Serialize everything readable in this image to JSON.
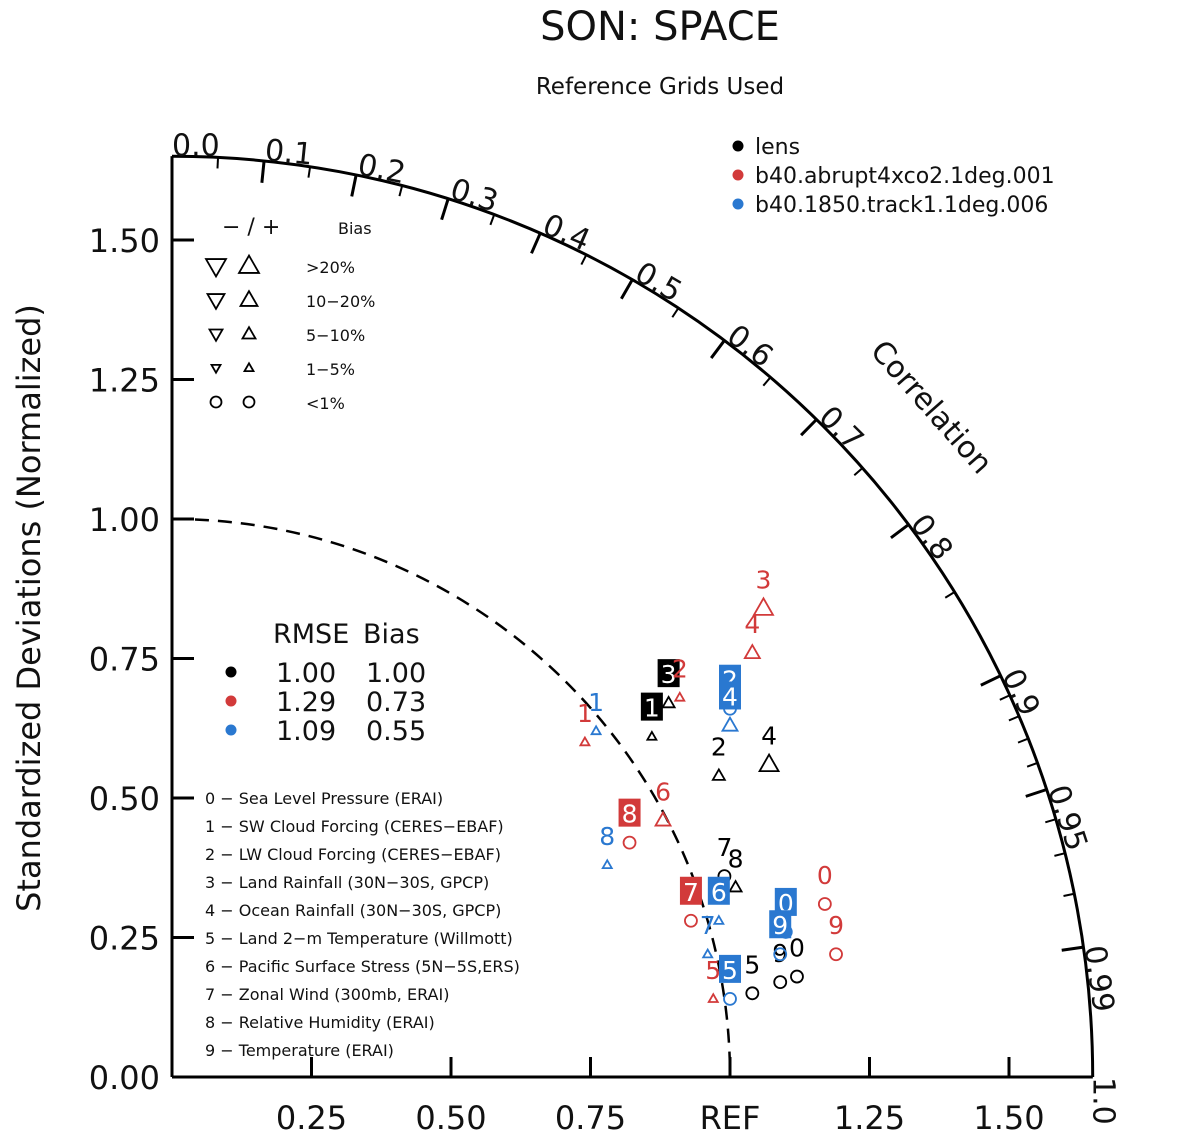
{
  "chart_data": {
    "type": "scatter",
    "subtype": "taylor-diagram",
    "title": "SON: SPACE",
    "subtitle": "Reference Grids Used",
    "ylabel": "Standardized Deviations (Normalized)",
    "correlation_label": "Correlation",
    "ref_label": "REF",
    "ylim": [
      0,
      1.65
    ],
    "xlim": [
      0,
      1.65
    ],
    "y_ticks": [
      "0.00",
      "0.25",
      "0.50",
      "0.75",
      "1.00",
      "1.25",
      "1.50"
    ],
    "x_ticks": [
      "0.25",
      "0.50",
      "0.75",
      "1.25",
      "1.50"
    ],
    "corr_ticks": [
      "0.0",
      "0.1",
      "0.2",
      "0.3",
      "0.4",
      "0.5",
      "0.6",
      "0.7",
      "0.8",
      "0.9",
      "0.95",
      "0.99",
      "1.0"
    ],
    "ref_circle_std": 1.0,
    "series": [
      {
        "name": "lens",
        "color": "#000000",
        "rmse": "1.00",
        "bias": "1.00"
      },
      {
        "name": "b40.abrupt4xco2.1deg.001",
        "color": "#d23a3a",
        "rmse": "1.29",
        "bias": "0.73"
      },
      {
        "name": "b40.1850.track1.1deg.006",
        "color": "#2a78d0",
        "rmse": "1.09",
        "bias": "0.55"
      }
    ],
    "bias_key": {
      "header": "− / +",
      "header_bias": "Bias",
      "rows": [
        {
          "label": ">20%",
          "size": "large"
        },
        {
          "label": "10−20%",
          "size": "medium"
        },
        {
          "label": "5−10%",
          "size": "small"
        },
        {
          "label": "1−5%",
          "size": "tiny"
        },
        {
          "label": "<1%",
          "size": "circle"
        }
      ]
    },
    "stats_header": {
      "rmse": "RMSE",
      "bias": "Bias"
    },
    "variables": [
      "0 − Sea Level Pressure (ERAI)",
      "1 − SW Cloud Forcing (CERES−EBAF)",
      "2 − LW Cloud Forcing (CERES−EBAF)",
      "3 − Land Rainfall (30N−30S, GPCP)",
      "4 − Ocean Rainfall (30N−30S, GPCP)",
      "5 − Land 2−m Temperature (Willmott)",
      "6 − Pacific Surface Stress (5N−5S,ERS)",
      "7 − Zonal Wind (300mb, ERAI)",
      "8 − Relative Humidity (ERAI)",
      "9 − Temperature (ERAI)"
    ],
    "points": [
      {
        "series": 0,
        "label": "0",
        "x": 1.12,
        "y": 0.18,
        "marker": "circle",
        "boxed": false
      },
      {
        "series": 0,
        "label": "1",
        "x": 0.86,
        "y": 0.61,
        "marker": "up-tiny",
        "boxed": true
      },
      {
        "series": 0,
        "label": "2",
        "x": 0.98,
        "y": 0.54,
        "marker": "up-small",
        "boxed": false
      },
      {
        "series": 0,
        "label": "3",
        "x": 0.89,
        "y": 0.67,
        "marker": "up-small",
        "boxed": true
      },
      {
        "series": 0,
        "label": "4",
        "x": 1.07,
        "y": 0.56,
        "marker": "up-large",
        "boxed": false
      },
      {
        "series": 0,
        "label": "5",
        "x": 1.04,
        "y": 0.15,
        "marker": "circle",
        "boxed": false
      },
      {
        "series": 0,
        "label": "7",
        "x": 0.99,
        "y": 0.36,
        "marker": "circle",
        "boxed": false
      },
      {
        "series": 0,
        "label": "8",
        "x": 1.01,
        "y": 0.34,
        "marker": "up-small",
        "boxed": false
      },
      {
        "series": 0,
        "label": "9",
        "x": 1.09,
        "y": 0.17,
        "marker": "circle",
        "boxed": false
      },
      {
        "series": 1,
        "label": "0",
        "x": 1.17,
        "y": 0.31,
        "marker": "circle",
        "boxed": false
      },
      {
        "series": 1,
        "label": "1",
        "x": 0.74,
        "y": 0.6,
        "marker": "up-tiny",
        "boxed": false
      },
      {
        "series": 1,
        "label": "2",
        "x": 0.91,
        "y": 0.68,
        "marker": "up-tiny",
        "boxed": false
      },
      {
        "series": 1,
        "label": "3",
        "x": 1.06,
        "y": 0.84,
        "marker": "up-large",
        "boxed": false
      },
      {
        "series": 1,
        "label": "4",
        "x": 1.04,
        "y": 0.76,
        "marker": "up-medium",
        "boxed": false
      },
      {
        "series": 1,
        "label": "5",
        "x": 0.97,
        "y": 0.14,
        "marker": "up-tiny",
        "boxed": false
      },
      {
        "series": 1,
        "label": "6",
        "x": 0.88,
        "y": 0.46,
        "marker": "up-medium",
        "boxed": false
      },
      {
        "series": 1,
        "label": "7",
        "x": 0.93,
        "y": 0.28,
        "marker": "circle",
        "boxed": true
      },
      {
        "series": 1,
        "label": "8",
        "x": 0.82,
        "y": 0.42,
        "marker": "circle",
        "boxed": true
      },
      {
        "series": 1,
        "label": "9",
        "x": 1.19,
        "y": 0.22,
        "marker": "circle",
        "boxed": false
      },
      {
        "series": 2,
        "label": "0",
        "x": 1.1,
        "y": 0.26,
        "marker": "circle",
        "boxed": true
      },
      {
        "series": 2,
        "label": "1",
        "x": 0.76,
        "y": 0.62,
        "marker": "up-tiny",
        "boxed": false
      },
      {
        "series": 2,
        "label": "2",
        "x": 1.0,
        "y": 0.66,
        "marker": "circle",
        "boxed": true
      },
      {
        "series": 2,
        "label": "4",
        "x": 1.0,
        "y": 0.63,
        "marker": "up-medium",
        "boxed": true
      },
      {
        "series": 2,
        "label": "5",
        "x": 1.0,
        "y": 0.14,
        "marker": "circle",
        "boxed": true
      },
      {
        "series": 2,
        "label": "6",
        "x": 0.98,
        "y": 0.28,
        "marker": "up-tiny",
        "boxed": true
      },
      {
        "series": 2,
        "label": "7",
        "x": 0.96,
        "y": 0.22,
        "marker": "up-tiny",
        "boxed": false
      },
      {
        "series": 2,
        "label": "8",
        "x": 0.78,
        "y": 0.38,
        "marker": "up-tiny",
        "boxed": false
      },
      {
        "series": 2,
        "label": "9",
        "x": 1.09,
        "y": 0.22,
        "marker": "circle",
        "boxed": true
      }
    ]
  }
}
